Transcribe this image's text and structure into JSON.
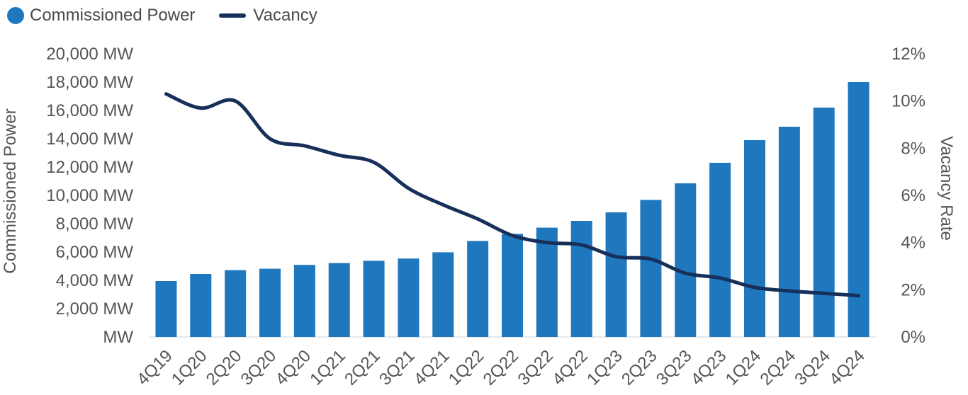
{
  "chart_data": {
    "type": "bar+line",
    "categories": [
      "4Q19",
      "1Q20",
      "2Q20",
      "3Q20",
      "4Q20",
      "1Q21",
      "2Q21",
      "3Q21",
      "4Q21",
      "1Q22",
      "2Q22",
      "3Q22",
      "4Q22",
      "1Q23",
      "2Q23",
      "3Q23",
      "4Q23",
      "1Q24",
      "2Q24",
      "3Q24",
      "4Q24"
    ],
    "series": [
      {
        "name": "Commissioned Power",
        "type": "bar",
        "axis": "left",
        "color": "#1f77be",
        "values": [
          3950,
          4450,
          4720,
          4820,
          5090,
          5220,
          5380,
          5540,
          5980,
          6780,
          7280,
          7720,
          8200,
          8800,
          9680,
          10850,
          12300,
          13900,
          14850,
          16200,
          18000
        ]
      },
      {
        "name": "Vacancy",
        "type": "line",
        "axis": "right",
        "color": "#17305a",
        "values": [
          10.3,
          9.7,
          10.0,
          8.4,
          8.1,
          7.7,
          7.4,
          6.3,
          5.6,
          5.0,
          4.3,
          4.0,
          3.9,
          3.4,
          3.3,
          2.7,
          2.5,
          2.1,
          1.95,
          1.85,
          1.75
        ]
      }
    ],
    "ylabel": "Commissioned Power",
    "y2label": "Vacancy Rate",
    "ylim": [
      0,
      20000
    ],
    "y2lim": [
      0,
      12
    ],
    "yticks": [
      "MW",
      "2,000 MW",
      "4,000 MW",
      "6,000 MW",
      "8,000 MW",
      "10,000 MW",
      "12,000 MW",
      "14,000 MW",
      "16,000 MW",
      "18,000 MW",
      "20,000 MW"
    ],
    "y2ticks": [
      "0%",
      "2%",
      "4%",
      "6%",
      "8%",
      "10%",
      "12%"
    ],
    "grid": false,
    "legend_position": "top-left"
  }
}
